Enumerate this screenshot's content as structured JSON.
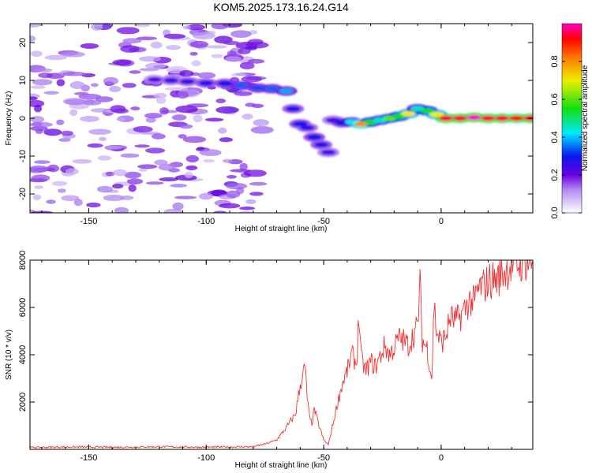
{
  "chart_data": [
    {
      "type": "heatmap",
      "title": "KOM5.2025.173.16.24.G14",
      "xlabel": "Height of straight line (km)",
      "ylabel": "Frequency (Hz)",
      "xlim": [
        -175,
        39
      ],
      "ylim": [
        -25,
        25
      ],
      "x_ticks": [
        -150,
        -100,
        -50,
        0
      ],
      "x_tick_labels": [
        "-150",
        "-100",
        "-50",
        "0"
      ],
      "y_ticks": [
        -20,
        -10,
        0,
        10,
        20
      ],
      "y_tick_labels": [
        "-20",
        "-10",
        "0",
        "10",
        "20"
      ],
      "colorbar": {
        "label": "Normalized spectral amplitude",
        "range": [
          0,
          1
        ],
        "ticks": [
          0.0,
          0.2,
          0.4,
          0.6,
          0.8
        ],
        "tick_labels": [
          "0.0",
          "0.2",
          "0.4",
          "0.6",
          "0.8"
        ]
      },
      "noise_region": {
        "x": [
          -175,
          -75
        ],
        "y": [
          -25,
          25
        ],
        "amplitude": 0.15
      },
      "ridge": [
        {
          "x": -122,
          "y": 10.2,
          "a": 0.22
        },
        {
          "x": -115,
          "y": 10.0,
          "a": 0.25
        },
        {
          "x": -108,
          "y": 9.7,
          "a": 0.26
        },
        {
          "x": -100,
          "y": 9.3,
          "a": 0.28
        },
        {
          "x": -92,
          "y": 9.2,
          "a": 0.3
        },
        {
          "x": -85,
          "y": 8.6,
          "a": 0.34
        },
        {
          "x": -78,
          "y": 8.0,
          "a": 0.33
        },
        {
          "x": -72,
          "y": 7.8,
          "a": 0.34
        },
        {
          "x": -66,
          "y": 7.2,
          "a": 0.38
        },
        {
          "x": -63,
          "y": 2.5,
          "a": 0.28
        },
        {
          "x": -60,
          "y": -1.5,
          "a": 0.3
        },
        {
          "x": -57,
          "y": -2.5,
          "a": 0.26
        },
        {
          "x": -54,
          "y": -5.0,
          "a": 0.3
        },
        {
          "x": -51,
          "y": -7.0,
          "a": 0.28
        },
        {
          "x": -48,
          "y": -9.0,
          "a": 0.24
        },
        {
          "x": -46,
          "y": -0.5,
          "a": 0.24
        },
        {
          "x": -42,
          "y": -1.2,
          "a": 0.3
        },
        {
          "x": -38,
          "y": -1.0,
          "a": 0.42
        },
        {
          "x": -34,
          "y": -1.5,
          "a": 0.8
        },
        {
          "x": -30,
          "y": -1.0,
          "a": 0.55
        },
        {
          "x": -26,
          "y": -0.5,
          "a": 0.45
        },
        {
          "x": -22,
          "y": 0.0,
          "a": 0.6
        },
        {
          "x": -18,
          "y": 0.5,
          "a": 0.55
        },
        {
          "x": -14,
          "y": 1.2,
          "a": 0.7
        },
        {
          "x": -10,
          "y": 2.5,
          "a": 0.45
        },
        {
          "x": -6,
          "y": 2.0,
          "a": 0.55
        },
        {
          "x": -2,
          "y": 1.0,
          "a": 0.7
        },
        {
          "x": 2,
          "y": 0.0,
          "a": 0.95
        },
        {
          "x": 8,
          "y": 0.0,
          "a": 0.95
        },
        {
          "x": 14,
          "y": 0.2,
          "a": 1.0
        },
        {
          "x": 20,
          "y": 0.0,
          "a": 0.95
        },
        {
          "x": 26,
          "y": 0.0,
          "a": 0.95
        },
        {
          "x": 32,
          "y": 0.0,
          "a": 0.9
        },
        {
          "x": 38,
          "y": 0.0,
          "a": 0.95
        }
      ]
    },
    {
      "type": "line",
      "title": "",
      "xlabel": "Height of straight line (km)",
      "ylabel": "SNR (10 * v/v)",
      "xlim": [
        -175,
        39
      ],
      "ylim": [
        0,
        8000
      ],
      "x_ticks": [
        -150,
        -100,
        -50,
        0
      ],
      "x_tick_labels": [
        "-150",
        "-100",
        "-50",
        "0"
      ],
      "y_ticks": [
        2000,
        4000,
        6000,
        8000
      ],
      "y_tick_labels": [
        "2000",
        "4000",
        "6000",
        "8000"
      ],
      "color": "#ee3333",
      "x": [
        -175,
        -160,
        -140,
        -120,
        -100,
        -90,
        -80,
        -74,
        -70,
        -66,
        -62,
        -60,
        -58,
        -57,
        -56,
        -55,
        -54,
        -52,
        -50,
        -48,
        -46,
        -44,
        -42,
        -40,
        -38,
        -36,
        -35,
        -34,
        -32,
        -30,
        -28,
        -26,
        -24,
        -22,
        -20,
        -18,
        -16,
        -14,
        -12,
        -10,
        -9,
        -8,
        -6,
        -4,
        -3,
        -2,
        0,
        2,
        4,
        6,
        8,
        10,
        12,
        14,
        16,
        18,
        20,
        22,
        24,
        26,
        28,
        30,
        32,
        34,
        36,
        39
      ],
      "y": [
        80,
        100,
        90,
        110,
        90,
        100,
        110,
        250,
        400,
        900,
        1500,
        2700,
        3500,
        2200,
        1300,
        1100,
        1700,
        1000,
        400,
        200,
        1100,
        2000,
        2800,
        3300,
        4000,
        3600,
        5700,
        3800,
        3300,
        3700,
        3500,
        3900,
        4400,
        4000,
        4300,
        4700,
        4600,
        4400,
        4800,
        5200,
        7000,
        4600,
        4300,
        3000,
        6200,
        5000,
        4500,
        4800,
        5600,
        5400,
        5600,
        5900,
        6300,
        6200,
        6800,
        6900,
        7100,
        7200,
        7200,
        7500,
        7600,
        7800,
        7800,
        7900,
        8000,
        7800
      ]
    }
  ]
}
